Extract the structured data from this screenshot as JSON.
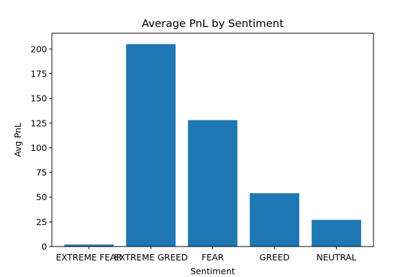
{
  "chart_data": {
    "type": "bar",
    "title": "Average PnL by Sentiment",
    "xlabel": "Sentiment",
    "ylabel": "Avg PnL",
    "categories": [
      "EXTREME FEAR",
      "EXTREME GREED",
      "FEAR",
      "GREED",
      "NEUTRAL"
    ],
    "values": [
      2,
      205,
      128,
      54,
      27
    ],
    "ylim": [
      0,
      216
    ],
    "yticks": [
      0,
      25,
      50,
      75,
      100,
      125,
      150,
      175,
      200
    ],
    "grid": false,
    "legend": false,
    "bar_color": "#1f77b4"
  }
}
